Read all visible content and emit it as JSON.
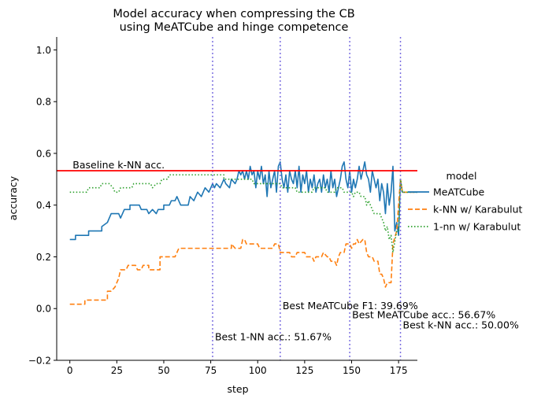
{
  "chart_data": {
    "type": "line",
    "title": [
      "Model accuracy when compressing the CB",
      "using MeATCube and hinge competence"
    ],
    "xlabel": "step",
    "ylabel": "accuracy",
    "xlim": [
      -7,
      185
    ],
    "ylim": [
      -0.2,
      1.05
    ],
    "xticks": [
      0,
      25,
      50,
      75,
      100,
      125,
      150,
      175
    ],
    "yticks": [
      -0.2,
      0.0,
      0.2,
      0.4,
      0.6,
      0.8,
      1.0
    ],
    "ytick_labels": [
      "−0.2",
      "0.0",
      "0.2",
      "0.4",
      "0.6",
      "0.8",
      "1.0"
    ],
    "grid": false,
    "legend": {
      "title": "model",
      "placement": "right, outside plot",
      "entries": [
        "MeATCube",
        "k-NN w/ Karabulut",
        "1-nn w/ Karabulut"
      ]
    },
    "baseline": {
      "label": "Baseline k-NN acc.",
      "y": 0.533,
      "color": "#ff0000"
    },
    "vlines": [
      {
        "x": 76,
        "label": "Best 1-NN acc.: 51.67%",
        "label_y": -0.11
      },
      {
        "x": 112,
        "label": "Best MeATCube F1: 39.69%",
        "label_y": 0.01
      },
      {
        "x": 149,
        "label": "Best MeATCube acc.: 56.67%",
        "label_y": -0.025
      },
      {
        "x": 176,
        "label": "Best k-NN acc.: 50.00%",
        "label_y": -0.065
      }
    ],
    "series": [
      {
        "name": "MeATCube",
        "color": "#1f77b4",
        "style": "solid",
        "points": [
          [
            0,
            0.267
          ],
          [
            3,
            0.267
          ],
          [
            3,
            0.283
          ],
          [
            10,
            0.283
          ],
          [
            10,
            0.3
          ],
          [
            17,
            0.3
          ],
          [
            17,
            0.317
          ],
          [
            20,
            0.333
          ],
          [
            22,
            0.367
          ],
          [
            26,
            0.367
          ],
          [
            27,
            0.35
          ],
          [
            29,
            0.383
          ],
          [
            32,
            0.383
          ],
          [
            32,
            0.4
          ],
          [
            37,
            0.4
          ],
          [
            38,
            0.383
          ],
          [
            41,
            0.383
          ],
          [
            42,
            0.367
          ],
          [
            44,
            0.383
          ],
          [
            46,
            0.367
          ],
          [
            47,
            0.383
          ],
          [
            50,
            0.383
          ],
          [
            50,
            0.4
          ],
          [
            53,
            0.4
          ],
          [
            54,
            0.417
          ],
          [
            56,
            0.417
          ],
          [
            57,
            0.433
          ],
          [
            59,
            0.4
          ],
          [
            63,
            0.4
          ],
          [
            64,
            0.433
          ],
          [
            66,
            0.417
          ],
          [
            68,
            0.45
          ],
          [
            70,
            0.433
          ],
          [
            72,
            0.467
          ],
          [
            74,
            0.45
          ],
          [
            76,
            0.483
          ],
          [
            77,
            0.467
          ],
          [
            78,
            0.483
          ],
          [
            80,
            0.467
          ],
          [
            82,
            0.5
          ],
          [
            83,
            0.483
          ],
          [
            85,
            0.467
          ],
          [
            86,
            0.5
          ],
          [
            88,
            0.483
          ],
          [
            89,
            0.5
          ],
          [
            90,
            0.533
          ],
          [
            91,
            0.517
          ],
          [
            92,
            0.533
          ],
          [
            93,
            0.5
          ],
          [
            94,
            0.533
          ],
          [
            95,
            0.5
          ],
          [
            96,
            0.55
          ],
          [
            97,
            0.517
          ],
          [
            98,
            0.533
          ],
          [
            99,
            0.467
          ],
          [
            100,
            0.533
          ],
          [
            101,
            0.5
          ],
          [
            102,
            0.55
          ],
          [
            103,
            0.483
          ],
          [
            104,
            0.517
          ],
          [
            105,
            0.433
          ],
          [
            106,
            0.533
          ],
          [
            107,
            0.467
          ],
          [
            108,
            0.5
          ],
          [
            109,
            0.533
          ],
          [
            110,
            0.45
          ],
          [
            111,
            0.55
          ],
          [
            112,
            0.567
          ],
          [
            113,
            0.5
          ],
          [
            114,
            0.467
          ],
          [
            115,
            0.517
          ],
          [
            116,
            0.45
          ],
          [
            117,
            0.533
          ],
          [
            118,
            0.5
          ],
          [
            119,
            0.483
          ],
          [
            120,
            0.533
          ],
          [
            121,
            0.467
          ],
          [
            122,
            0.55
          ],
          [
            123,
            0.45
          ],
          [
            124,
            0.517
          ],
          [
            125,
            0.483
          ],
          [
            126,
            0.533
          ],
          [
            127,
            0.45
          ],
          [
            128,
            0.5
          ],
          [
            129,
            0.467
          ],
          [
            130,
            0.517
          ],
          [
            131,
            0.45
          ],
          [
            132,
            0.483
          ],
          [
            133,
            0.5
          ],
          [
            134,
            0.45
          ],
          [
            135,
            0.517
          ],
          [
            136,
            0.467
          ],
          [
            137,
            0.5
          ],
          [
            138,
            0.45
          ],
          [
            139,
            0.533
          ],
          [
            140,
            0.467
          ],
          [
            141,
            0.5
          ],
          [
            142,
            0.433
          ],
          [
            143,
            0.467
          ],
          [
            144,
            0.5
          ],
          [
            145,
            0.55
          ],
          [
            146,
            0.567
          ],
          [
            147,
            0.5
          ],
          [
            148,
            0.467
          ],
          [
            149,
            0.533
          ],
          [
            150,
            0.45
          ],
          [
            151,
            0.5
          ],
          [
            152,
            0.467
          ],
          [
            153,
            0.5
          ],
          [
            154,
            0.55
          ],
          [
            155,
            0.5
          ],
          [
            156,
            0.533
          ],
          [
            157,
            0.567
          ],
          [
            158,
            0.517
          ],
          [
            159,
            0.5
          ],
          [
            160,
            0.45
          ],
          [
            161,
            0.533
          ],
          [
            162,
            0.5
          ],
          [
            163,
            0.467
          ],
          [
            164,
            0.5
          ],
          [
            165,
            0.417
          ],
          [
            166,
            0.483
          ],
          [
            167,
            0.45
          ],
          [
            168,
            0.367
          ],
          [
            169,
            0.483
          ],
          [
            170,
            0.4
          ],
          [
            171,
            0.45
          ],
          [
            172,
            0.55
          ],
          [
            173,
            0.3
          ],
          [
            174,
            0.333
          ],
          [
            175,
            0.283
          ],
          [
            176,
            0.5
          ],
          [
            177,
            0.45
          ],
          [
            185,
            0.45
          ]
        ]
      },
      {
        "name": "k-NN w/ Karabulut",
        "color": "#ff7f0e",
        "style": "dashed",
        "points": [
          [
            0,
            0.017
          ],
          [
            8,
            0.017
          ],
          [
            8,
            0.033
          ],
          [
            20,
            0.033
          ],
          [
            20,
            0.067
          ],
          [
            22,
            0.067
          ],
          [
            24,
            0.083
          ],
          [
            26,
            0.117
          ],
          [
            27,
            0.15
          ],
          [
            30,
            0.15
          ],
          [
            31,
            0.167
          ],
          [
            35,
            0.167
          ],
          [
            36,
            0.15
          ],
          [
            38,
            0.15
          ],
          [
            39,
            0.167
          ],
          [
            42,
            0.167
          ],
          [
            42,
            0.15
          ],
          [
            48,
            0.15
          ],
          [
            48,
            0.2
          ],
          [
            56,
            0.2
          ],
          [
            58,
            0.233
          ],
          [
            86,
            0.233
          ],
          [
            86,
            0.25
          ],
          [
            88,
            0.233
          ],
          [
            91,
            0.233
          ],
          [
            92,
            0.267
          ],
          [
            93,
            0.267
          ],
          [
            94,
            0.25
          ],
          [
            100,
            0.25
          ],
          [
            101,
            0.233
          ],
          [
            108,
            0.233
          ],
          [
            109,
            0.25
          ],
          [
            111,
            0.25
          ],
          [
            112,
            0.217
          ],
          [
            117,
            0.217
          ],
          [
            118,
            0.2
          ],
          [
            120,
            0.2
          ],
          [
            121,
            0.217
          ],
          [
            125,
            0.217
          ],
          [
            126,
            0.2
          ],
          [
            129,
            0.2
          ],
          [
            130,
            0.183
          ],
          [
            131,
            0.2
          ],
          [
            134,
            0.2
          ],
          [
            135,
            0.217
          ],
          [
            137,
            0.2
          ],
          [
            138,
            0.2
          ],
          [
            139,
            0.183
          ],
          [
            141,
            0.183
          ],
          [
            142,
            0.167
          ],
          [
            143,
            0.2
          ],
          [
            144,
            0.217
          ],
          [
            146,
            0.217
          ],
          [
            147,
            0.25
          ],
          [
            149,
            0.25
          ],
          [
            150,
            0.233
          ],
          [
            151,
            0.25
          ],
          [
            152,
            0.25
          ],
          [
            153,
            0.267
          ],
          [
            154,
            0.25
          ],
          [
            156,
            0.267
          ],
          [
            157,
            0.267
          ],
          [
            158,
            0.217
          ],
          [
            159,
            0.2
          ],
          [
            161,
            0.2
          ],
          [
            162,
            0.183
          ],
          [
            164,
            0.183
          ],
          [
            165,
            0.133
          ],
          [
            166,
            0.133
          ],
          [
            167,
            0.117
          ],
          [
            168,
            0.083
          ],
          [
            169,
            0.1
          ],
          [
            171,
            0.1
          ],
          [
            172,
            0.25
          ],
          [
            174,
            0.3
          ],
          [
            176,
            0.5
          ],
          [
            177,
            0.45
          ],
          [
            185,
            0.45
          ]
        ]
      },
      {
        "name": "1-nn w/ Karabulut",
        "color": "#2ca02c",
        "style": "dotted",
        "points": [
          [
            0,
            0.45
          ],
          [
            9,
            0.45
          ],
          [
            10,
            0.467
          ],
          [
            16,
            0.467
          ],
          [
            17,
            0.483
          ],
          [
            21,
            0.483
          ],
          [
            23,
            0.467
          ],
          [
            24,
            0.45
          ],
          [
            26,
            0.45
          ],
          [
            27,
            0.467
          ],
          [
            33,
            0.467
          ],
          [
            34,
            0.483
          ],
          [
            43,
            0.483
          ],
          [
            44,
            0.467
          ],
          [
            46,
            0.483
          ],
          [
            48,
            0.483
          ],
          [
            49,
            0.5
          ],
          [
            52,
            0.5
          ],
          [
            53,
            0.517
          ],
          [
            82,
            0.517
          ],
          [
            82,
            0.5
          ],
          [
            97,
            0.5
          ],
          [
            98,
            0.483
          ],
          [
            112,
            0.483
          ],
          [
            113,
            0.467
          ],
          [
            120,
            0.467
          ],
          [
            121,
            0.45
          ],
          [
            129,
            0.45
          ],
          [
            130,
            0.467
          ],
          [
            136,
            0.467
          ],
          [
            137,
            0.45
          ],
          [
            141,
            0.45
          ],
          [
            142,
            0.467
          ],
          [
            145,
            0.467
          ],
          [
            146,
            0.45
          ],
          [
            150,
            0.45
          ],
          [
            151,
            0.433
          ],
          [
            152,
            0.45
          ],
          [
            154,
            0.45
          ],
          [
            155,
            0.433
          ],
          [
            157,
            0.433
          ],
          [
            158,
            0.4
          ],
          [
            159,
            0.417
          ],
          [
            160,
            0.4
          ],
          [
            161,
            0.383
          ],
          [
            162,
            0.367
          ],
          [
            165,
            0.367
          ],
          [
            166,
            0.35
          ],
          [
            167,
            0.333
          ],
          [
            168,
            0.3
          ],
          [
            169,
            0.317
          ],
          [
            170,
            0.267
          ],
          [
            171,
            0.283
          ],
          [
            172,
            0.217
          ],
          [
            174,
            0.3
          ],
          [
            175,
            0.3
          ],
          [
            176,
            0.5
          ],
          [
            177,
            0.45
          ],
          [
            185,
            0.45
          ]
        ]
      }
    ]
  }
}
